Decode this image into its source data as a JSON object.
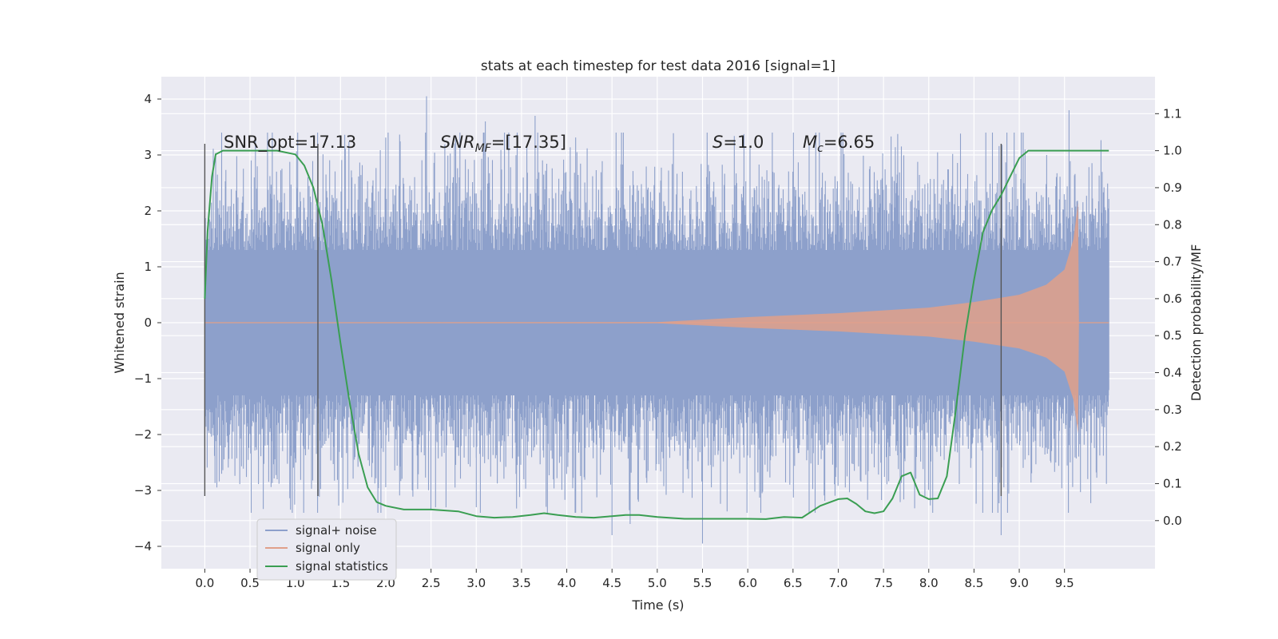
{
  "chart_data": {
    "type": "line",
    "title": "stats at each timestep for test data 2016 [signal=1]",
    "xlabel": "Time (s)",
    "ylabel": "Whitened strain",
    "y2label": "Detection probability/MF",
    "xlim": [
      -0.48,
      10.5
    ],
    "ylim": [
      -4.4,
      4.4
    ],
    "y2lim": [
      -0.13,
      1.2
    ],
    "xticks": [
      "0.0",
      "0.5",
      "1.0",
      "1.5",
      "2.0",
      "2.5",
      "3.0",
      "3.5",
      "4.0",
      "4.5",
      "5.0",
      "5.5",
      "6.0",
      "6.5",
      "7.0",
      "7.5",
      "8.0",
      "8.5",
      "9.0",
      "9.5"
    ],
    "yticks": [
      "−4",
      "−3",
      "−2",
      "−1",
      "0",
      "1",
      "2",
      "3",
      "4"
    ],
    "y2ticks": [
      "0.0",
      "0.1",
      "0.2",
      "0.3",
      "0.4",
      "0.5",
      "0.6",
      "0.7",
      "0.8",
      "0.9",
      "1.0",
      "1.1"
    ],
    "grid": true,
    "legend_position": "bottom-left",
    "annotations": {
      "snr_opt": "SNR_opt=17.13",
      "snr_mf_prefix": "SNR",
      "snr_mf_sub": "MF",
      "snr_mf_value": "=[17.35]",
      "s_label": "S",
      "s_value": "=1.0",
      "mc_label": "M",
      "mc_sub": "c",
      "mc_value": "=6.65"
    },
    "vertical_markers_x": [
      0.0,
      1.25,
      8.8
    ],
    "vertical_markers_yrange": [
      -3.1,
      3.2
    ],
    "series": [
      {
        "name": "signal+ noise",
        "color": "#8da0cb",
        "x_range": [
          0.0,
          9.99
        ],
        "envelope_typical": 1.3,
        "peaks": [
          [
            0.8,
            -2.8
          ],
          [
            2.45,
            4.05
          ],
          [
            2.55,
            -3.3
          ],
          [
            3.0,
            -3.3
          ],
          [
            3.1,
            3.6
          ],
          [
            3.65,
            3.7
          ],
          [
            4.5,
            -3.8
          ],
          [
            4.7,
            -3.6
          ],
          [
            5.5,
            -3.95
          ],
          [
            8.8,
            -3.8
          ],
          [
            9.55,
            3.8
          ]
        ]
      },
      {
        "name": "signal only",
        "color": "#e0a08a",
        "chirp": [
          [
            0.0,
            0.005
          ],
          [
            5.0,
            0.01
          ],
          [
            6.0,
            0.1
          ],
          [
            7.0,
            0.17
          ],
          [
            8.0,
            0.27
          ],
          [
            8.5,
            0.37
          ],
          [
            9.0,
            0.5
          ],
          [
            9.3,
            0.68
          ],
          [
            9.5,
            0.95
          ],
          [
            9.6,
            1.5
          ],
          [
            9.65,
            2.15
          ]
        ],
        "end_x": 9.66
      },
      {
        "name": "signal statistics",
        "color": "#3a9e52",
        "x": [
          0.0,
          0.03,
          0.08,
          0.12,
          0.2,
          0.3,
          0.5,
          0.8,
          1.0,
          1.1,
          1.2,
          1.3,
          1.4,
          1.5,
          1.6,
          1.7,
          1.8,
          1.9,
          2.0,
          2.2,
          2.5,
          2.8,
          3.0,
          3.2,
          3.4,
          3.6,
          3.75,
          3.9,
          4.1,
          4.3,
          4.5,
          4.65,
          4.8,
          5.0,
          5.3,
          5.6,
          6.0,
          6.2,
          6.4,
          6.6,
          6.8,
          7.0,
          7.1,
          7.2,
          7.3,
          7.4,
          7.5,
          7.6,
          7.7,
          7.8,
          7.9,
          8.0,
          8.1,
          8.2,
          8.3,
          8.4,
          8.5,
          8.6,
          8.7,
          8.8,
          8.9,
          9.0,
          9.1,
          9.2,
          9.4,
          9.6,
          9.99
        ],
        "values": [
          0.6,
          0.78,
          0.93,
          0.99,
          1.0,
          1.0,
          1.0,
          1.0,
          0.99,
          0.96,
          0.9,
          0.8,
          0.65,
          0.48,
          0.32,
          0.18,
          0.09,
          0.05,
          0.04,
          0.03,
          0.03,
          0.025,
          0.012,
          0.008,
          0.01,
          0.015,
          0.02,
          0.015,
          0.01,
          0.008,
          0.012,
          0.015,
          0.015,
          0.01,
          0.005,
          0.005,
          0.005,
          0.004,
          0.01,
          0.008,
          0.04,
          0.058,
          0.06,
          0.045,
          0.025,
          0.02,
          0.025,
          0.06,
          0.12,
          0.13,
          0.07,
          0.058,
          0.06,
          0.12,
          0.3,
          0.5,
          0.65,
          0.78,
          0.84,
          0.88,
          0.93,
          0.98,
          1.0,
          1.0,
          1.0,
          1.0,
          1.0
        ]
      }
    ]
  }
}
